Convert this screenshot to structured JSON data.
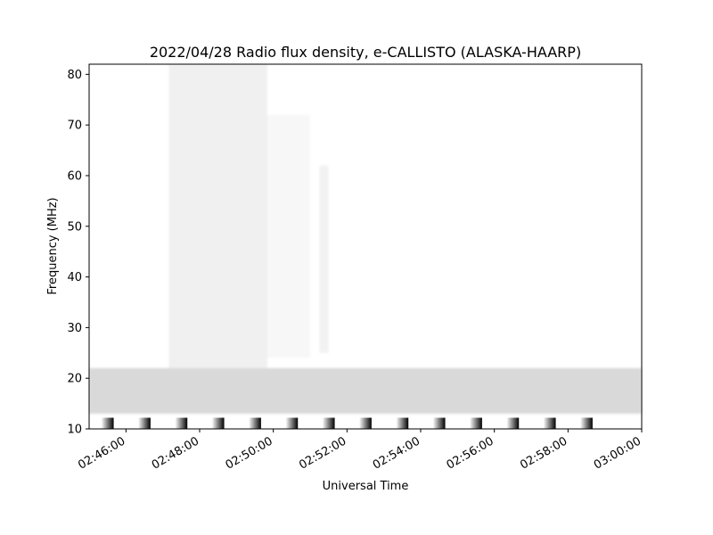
{
  "chart_data": {
    "type": "heatmap",
    "title": "2022/04/28  Radio flux density, e-CALLISTO (ALASKA-HAARP)",
    "xlabel": "Universal Time",
    "ylabel": "Frequency (MHz)",
    "xlim": [
      "02:45:00",
      "03:00:00"
    ],
    "ylim": [
      10,
      82
    ],
    "x_ticks": [
      "02:46:00",
      "02:48:00",
      "02:50:00",
      "02:52:00",
      "02:54:00",
      "02:56:00",
      "02:58:00",
      "03:00:00"
    ],
    "y_ticks": [
      10,
      20,
      30,
      40,
      50,
      60,
      70,
      80
    ],
    "grid": false,
    "colormap": "grayscale (white = low, black = high)",
    "colors": {
      "background": "#ffffff",
      "high": "#000000",
      "low": "#ffffff"
    },
    "features": [
      {
        "name": "",
        "time_start": "02:47:10",
        "time_end": "02:49:50",
        "freq_low": 22,
        "freq_high": 82,
        "intensity": 0.06
      },
      {
        "name": "",
        "time_start": "02:49:50",
        "time_end": "02:51:00",
        "freq_low": 24,
        "freq_high": 72,
        "intensity": 0.03
      },
      {
        "name": "",
        "time_start": "02:51:15",
        "time_end": "02:51:30",
        "freq_low": 25,
        "freq_high": 62,
        "intensity": 0.05
      },
      {
        "name": "",
        "time_start": "02:45:00",
        "time_end": "03:00:00",
        "freq_low": 13,
        "freq_high": 22,
        "intensity": 0.15
      }
    ],
    "calibration_blocks": [
      "02:45:20",
      "02:46:20",
      "02:47:20",
      "02:48:20",
      "02:49:20",
      "02:50:20",
      "02:51:20",
      "02:52:20",
      "02:53:20",
      "02:54:20",
      "02:55:20",
      "02:56:20",
      "02:57:20",
      "02:58:20"
    ],
    "calibration_freq_range": [
      10,
      12.2
    ]
  }
}
